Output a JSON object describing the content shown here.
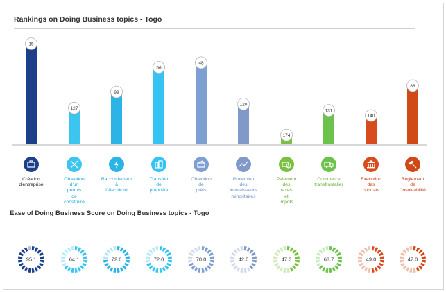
{
  "chart_data": [
    {
      "type": "bar",
      "title": "Rankings on Doing Business topics - Togo",
      "categories": [
        "Création d'entreprise",
        "Obtention d'un permis de construire",
        "Raccordement à l'électricité",
        "Transfert de propriété",
        "Obtention de prêts",
        "Protection des investisseurs minoritaires",
        "Paiement des taxes et impôts",
        "Commerce transfrontalier",
        "Exécution des contrats",
        "Règlement de l'insolvabilité"
      ],
      "values": [
        15,
        127,
        99,
        56,
        48,
        120,
        174,
        131,
        140,
        88
      ],
      "label_lines": [
        [
          "Création",
          "d'entreprise"
        ],
        [
          "Obtention",
          "d'un",
          "permis",
          "de",
          "construire"
        ],
        [
          "Raccordement",
          "à",
          "l'électricité"
        ],
        [
          "Transfert",
          "de",
          "propriété"
        ],
        [
          "Obtention",
          "de",
          "prêts"
        ],
        [
          "Protection",
          "des",
          "investisseurs",
          "minoritaires"
        ],
        [
          "Paiement",
          "des",
          "taxes",
          "et",
          "impôts"
        ],
        [
          "Commerce",
          "transfrontalier"
        ],
        [
          "Exécution",
          "des",
          "contrats"
        ],
        [
          "Règlement",
          "de",
          "l'insolvabilité"
        ]
      ],
      "icons": [
        "briefcase-icon",
        "tools-icon",
        "lightning-icon",
        "building-icon",
        "money-icon",
        "chart-line-icon",
        "cash-icon",
        "truck-icon",
        "courthouse-icon",
        "gavel-icon"
      ],
      "colors": [
        "#1c3f8a",
        "#3cc6ef",
        "#2cb4e6",
        "#35c4f1",
        "#7e9fd1",
        "#8099c8",
        "#7ac143",
        "#6cc24a",
        "#d84b1c",
        "#cf4a16"
      ],
      "label_colors": [
        "#1a1a1a",
        "#21a8dc",
        "#21a8dc",
        "#21a8dc",
        "#6f8fc5",
        "#6f8fc5",
        "#6aad38",
        "#6aad38",
        "#c8431b",
        "#c8431b"
      ]
    },
    {
      "type": "donut",
      "title": "Ease of Doing Business Score on Doing Business topics - Togo",
      "categories": [
        "Création d'entreprise",
        "Obtention d'un permis de construire",
        "Raccordement à l'électricité",
        "Transfert de propriété",
        "Obtention de prêts",
        "Protection des investisseurs minoritaires",
        "Paiement des taxes et impôts",
        "Commerce transfrontalier",
        "Exécution des contrats",
        "Règlement de l'insolvabilité"
      ],
      "values": [
        95.1,
        64.1,
        72.6,
        72.0,
        70.0,
        42.0,
        47.3,
        63.7,
        49.0,
        47.0
      ],
      "labels": [
        "95.1",
        "64.1",
        "72.6",
        "72.0",
        "70.0",
        "42.0",
        "47.3",
        "63.7",
        "49.0",
        "47.0"
      ],
      "range": [
        0,
        100
      ]
    }
  ]
}
